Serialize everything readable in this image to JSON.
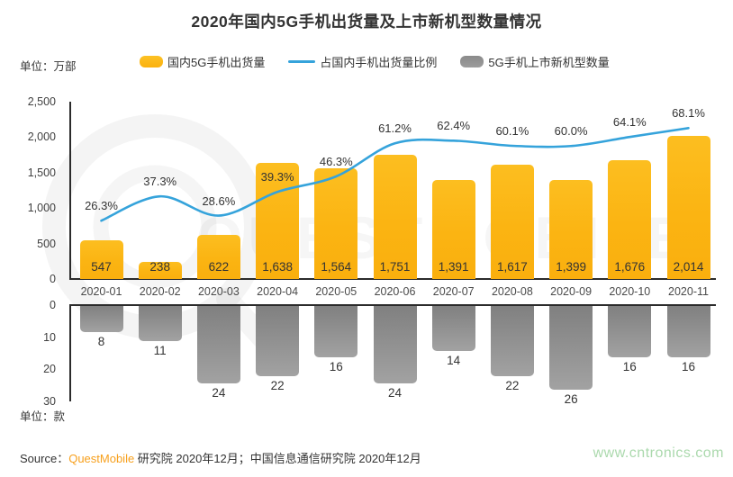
{
  "title": "2020年国内5G手机出货量及上市新机型数量情况",
  "units": {
    "top": "单位：万部",
    "bottom": "单位：款"
  },
  "legend": {
    "items": [
      {
        "label": "国内5G手机出货量",
        "type": "bar",
        "color": "#FBB614"
      },
      {
        "label": "占国内手机出货量比例",
        "type": "line",
        "color": "#35A3DB"
      },
      {
        "label": "5G手机上市新机型数量",
        "type": "bar",
        "color": "#8C8C8C"
      }
    ]
  },
  "watermark_text": "QUESTMOBILE",
  "colors": {
    "bar_yellow": "#FBB614",
    "bar_gray": "#8C8C8C",
    "line_blue": "#35A3DB",
    "axis": "#2b2b2b",
    "brand_orange": "#F7A01D",
    "site_green": "#ABD9AD"
  },
  "footer": {
    "source_prefix": "Source：",
    "source_brand": "QuestMobile",
    "source_suffix": " 研究院 2020年12月；中国信息通信研究院 2020年12月",
    "site": "www.cntronics.com"
  },
  "chart_data": [
    {
      "type": "bar",
      "categories": [
        "2020-01",
        "2020-02",
        "2020-03",
        "2020-04",
        "2020-05",
        "2020-06",
        "2020-07",
        "2020-08",
        "2020-09",
        "2020-10",
        "2020-11"
      ],
      "series": [
        {
          "name": "国内5G手机出货量",
          "type": "bar",
          "unit": "万部",
          "values": [
            547,
            238,
            622,
            1638,
            1564,
            1751,
            1391,
            1617,
            1399,
            1676,
            2014
          ],
          "value_labels": [
            "547",
            "238",
            "622",
            "1,638",
            "1,564",
            "1,751",
            "1,391",
            "1,617",
            "1,399",
            "1,676",
            "2,014"
          ]
        },
        {
          "name": "占国内手机出货量比例",
          "type": "line",
          "unit": "%",
          "values": [
            26.3,
            37.3,
            28.6,
            39.3,
            46.3,
            61.2,
            62.4,
            60.1,
            60.0,
            64.1,
            68.1
          ],
          "value_labels": [
            "26.3%",
            "37.3%",
            "28.6%",
            "39.3%",
            "46.3%",
            "61.2%",
            "62.4%",
            "60.1%",
            "60.0%",
            "64.1%",
            "68.1%"
          ],
          "secondary_ylim": [
            0,
            80
          ]
        }
      ],
      "ylim": [
        0,
        2500
      ],
      "yticks": [
        {
          "v": 2500,
          "label": "2,500"
        },
        {
          "v": 2000,
          "label": "2,000"
        },
        {
          "v": 1500,
          "label": "1,500"
        },
        {
          "v": 1000,
          "label": "1,000"
        },
        {
          "v": 500,
          "label": "500"
        },
        {
          "v": 0,
          "label": "0"
        }
      ],
      "grid": false,
      "legend_position": "top"
    },
    {
      "type": "bar",
      "inverted": true,
      "categories": [
        "2020-01",
        "2020-02",
        "2020-03",
        "2020-04",
        "2020-05",
        "2020-06",
        "2020-07",
        "2020-08",
        "2020-09",
        "2020-10",
        "2020-11"
      ],
      "series": [
        {
          "name": "5G手机上市新机型数量",
          "type": "bar",
          "unit": "款",
          "values": [
            8,
            11,
            24,
            22,
            16,
            24,
            14,
            22,
            26,
            16,
            16
          ],
          "value_labels": [
            "8",
            "11",
            "24",
            "22",
            "16",
            "24",
            "14",
            "22",
            "26",
            "16",
            "16"
          ]
        }
      ],
      "ylim": [
        0,
        30
      ],
      "yticks": [
        {
          "v": 0,
          "label": "0"
        },
        {
          "v": 10,
          "label": "10"
        },
        {
          "v": 20,
          "label": "20"
        },
        {
          "v": 30,
          "label": "30"
        }
      ],
      "grid": false
    }
  ]
}
